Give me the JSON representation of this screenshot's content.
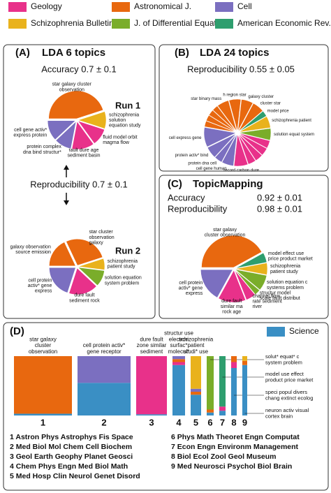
{
  "panels": {
    "a": {
      "label": "(A)",
      "title": "LDA 6 topics",
      "accuracy": "Accuracy 0.7 ± 0.1",
      "run1": "Run 1",
      "reproducibility": "Reproducibility 0.7 ± 0.1",
      "run2": "Run 2"
    },
    "b": {
      "label": "(B)",
      "title": "LDA 24 topics",
      "reproducibility": "Reproducibility 0.55 ± 0.05"
    },
    "c": {
      "label": "(C)",
      "title": "TopicMapping",
      "accuracy": "Accuracy",
      "accuracy_value": "0.92 ± 0.01",
      "reproducibility": "Reproducibility",
      "reproducibility_value": "0.98 ± 0.01"
    },
    "d": {
      "label": "(D)",
      "fields": [
        "1   Astron Phys Astrophys Fis Space",
        "2   Med Biol Mol Chem Cell Biochem",
        "3   Geol Earth Geophy Planet Geosci",
        "4   Chem Phys Engn Med Biol Math",
        "5   Med Hosp Clin Neurol Genet Disord",
        "6   Phys Math Theoret Engn Computat",
        "7   Econ Engn Environm Management",
        "8   Biol Ecol Zool Geol Museum",
        "9   Med Neurosci Psychol Biol Brain"
      ]
    }
  },
  "chart_data": [
    {
      "type": "pie",
      "categories": [
        "star galaxy cluster\nobservation",
        "schizophrenia\nsolution\nequation study",
        "fluid model orbit\nmagma flow",
        "fault dure age\nsediment basin",
        "protein complex\ndna bind structur*",
        "cell gene activ*\nexpress protein"
      ],
      "values": [
        45,
        10,
        10,
        13,
        10,
        12
      ],
      "colors": [
        "#e8680f",
        "#e9b21c",
        "#e8318a",
        "#e8318a",
        "#7b6fc0",
        "#7b6fc0"
      ]
    },
    {
      "type": "pie",
      "categories": [
        "galaxy observation\nsource emission",
        "star cluster\nobservation\ngalaxy",
        "schizophrenia\npatient study",
        "solution equation\nsystem problem",
        "dure fault\nsediment rock",
        "cell protein\nactiv* gene\nexpress"
      ],
      "values": [
        18,
        27,
        7,
        10,
        18,
        20
      ],
      "colors": [
        "#e8680f",
        "#e8680f",
        "#e9b21c",
        "#7aad2a",
        "#e8318a",
        "#7b6fc0"
      ]
    },
    {
      "type": "pie",
      "categories": [
        null,
        null,
        null,
        null,
        "star binary mass",
        "h region star",
        "galaxy cluster",
        "cluster star",
        "model price",
        "schizophrenia patient",
        "solution equat system",
        null,
        null,
        null,
        null,
        "record carbon dure",
        "cell gene human",
        "protein dna cell",
        "protein activ* bind",
        "cell express gene"
      ],
      "values": [
        3,
        3,
        3,
        3,
        6,
        6,
        6,
        6,
        3,
        6,
        6,
        4,
        4,
        4,
        4,
        7,
        6,
        4,
        6,
        10
      ],
      "colors": [
        "#e8680f",
        "#e8680f",
        "#e8680f",
        "#e8680f",
        "#e8680f",
        "#e8680f",
        "#e8680f",
        "#e8680f",
        "#2e9e6e",
        "#e9b21c",
        "#7aad2a",
        "#e8318a",
        "#e8318a",
        "#e8318a",
        "#e8318a",
        "#e8318a",
        "#7b6fc0",
        "#7b6fc0",
        "#7b6fc0",
        "#7b6fc0"
      ]
    },
    {
      "type": "pie",
      "categories": [
        "star galaxy\ncluster observation",
        "model effect use\nprice product market",
        "schizophrenia\npatient study",
        "solution equation c\nsystems problem",
        "structur model\nscale fault distribut",
        "channel flow\nrate sediment\nriver",
        "dure fault\nsimilar ma\nrock age",
        "cell protein\nactiv* gene\nexpress"
      ],
      "values": [
        42,
        5,
        6,
        8,
        3,
        5,
        14,
        17
      ],
      "colors": [
        "#e8680f",
        "#2e9e6e",
        "#e9b21c",
        "#7aad2a",
        "#7aad2a",
        "#e8318a",
        "#e8318a",
        "#7b6fc0"
      ]
    },
    {
      "type": "bar",
      "categories": [
        "1",
        "2",
        "3",
        "4",
        "5",
        "6",
        "7",
        "8",
        "9"
      ],
      "labels": [
        "star galaxy\ncluster\nobservation",
        "cell protein activ*\ngene receptor",
        "dure fault\nzone similar\nsediment",
        "structur use\nelectron\nsurfac*\nmolecul*",
        "schizophrenia\npatient\nstudi* use",
        "solut* equat* c\nsystem problem",
        "model use effect\nproduct price market",
        "speci popul divers\nchang extinct ecolog",
        "neuron activ visual\ncortex brain"
      ],
      "series": [
        {
          "name": "Science",
          "color": "#3a8fc4",
          "values": [
            3,
            55,
            2,
            85,
            35,
            5,
            8,
            80,
            85
          ]
        },
        {
          "name": "Geology",
          "color": "#e8318a",
          "values": [
            0,
            0,
            98,
            5,
            0,
            0,
            7,
            10,
            0
          ]
        },
        {
          "name": "Astronomical J.",
          "color": "#e8680f",
          "values": [
            97,
            0,
            0,
            5,
            5,
            5,
            0,
            10,
            7
          ]
        },
        {
          "name": "Cell",
          "color": "#7b6fc0",
          "values": [
            0,
            45,
            0,
            5,
            5,
            0,
            0,
            0,
            0
          ]
        },
        {
          "name": "Schizophrenia Bulletin",
          "color": "#e9b21c",
          "values": [
            0,
            0,
            0,
            0,
            55,
            0,
            0,
            0,
            8
          ]
        },
        {
          "name": "J. of Differential Equations",
          "color": "#7aad2a",
          "values": [
            0,
            0,
            0,
            0,
            0,
            90,
            0,
            0,
            0
          ]
        },
        {
          "name": "American Economic Rev.",
          "color": "#2e9e6e",
          "values": [
            0,
            0,
            0,
            0,
            0,
            0,
            85,
            0,
            0
          ]
        }
      ]
    }
  ]
}
